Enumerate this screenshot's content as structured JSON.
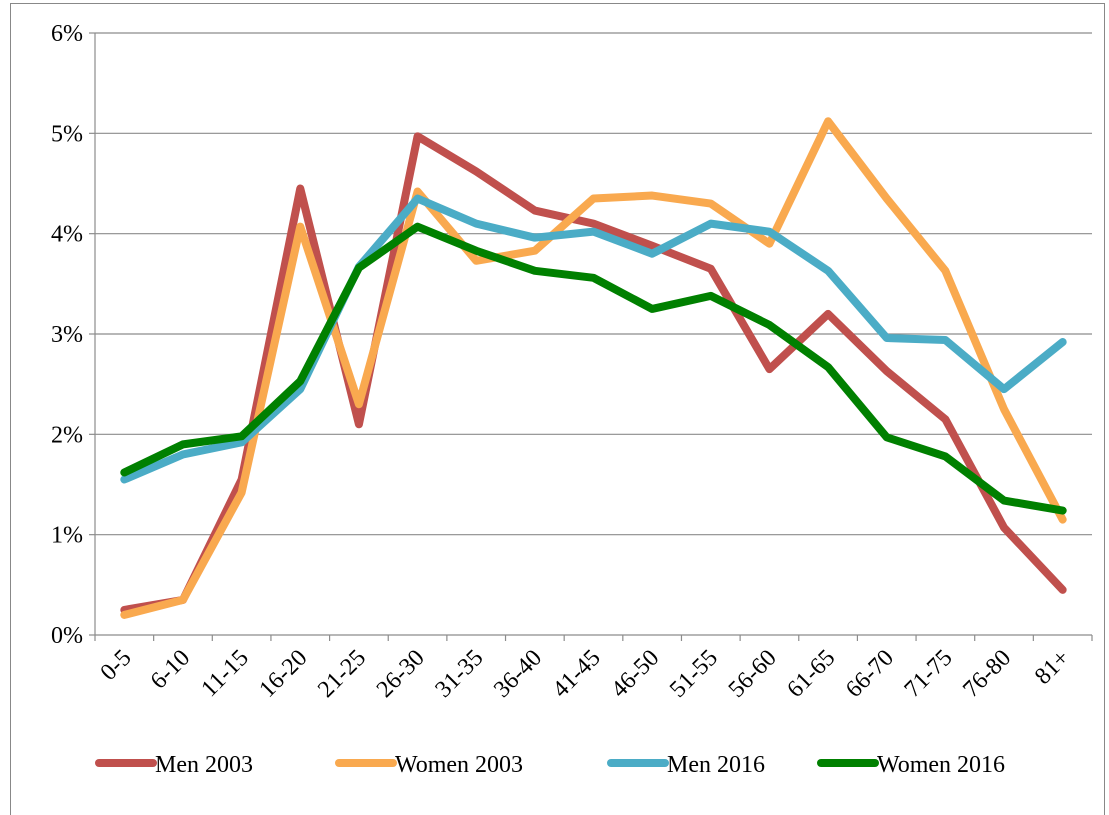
{
  "chart_data": {
    "type": "line",
    "categories": [
      "0-5",
      "6-10",
      "11-15",
      "16-20",
      "21-25",
      "26-30",
      "31-35",
      "36-40",
      "41-45",
      "46-50",
      "51-55",
      "56-60",
      "61-65",
      "66-70",
      "71-75",
      "76-80",
      "81+"
    ],
    "series": [
      {
        "name": "Men 2003",
        "color": "#c0504d",
        "values": [
          0.25,
          0.35,
          1.55,
          4.45,
          2.1,
          4.97,
          4.62,
          4.23,
          4.1,
          3.88,
          3.65,
          2.65,
          3.2,
          2.63,
          2.15,
          1.07,
          0.45
        ]
      },
      {
        "name": "Women 2003",
        "color": "#f9a94f",
        "values": [
          0.2,
          0.35,
          1.42,
          4.07,
          2.3,
          4.42,
          3.73,
          3.83,
          4.35,
          4.38,
          4.3,
          3.9,
          5.12,
          4.35,
          3.63,
          2.25,
          1.15
        ]
      },
      {
        "name": "Men 2016",
        "color": "#4bacc6",
        "values": [
          1.55,
          1.8,
          1.92,
          2.45,
          3.67,
          4.35,
          4.1,
          3.96,
          4.02,
          3.8,
          4.1,
          4.02,
          3.63,
          2.96,
          2.94,
          2.45,
          2.92
        ]
      },
      {
        "name": "Women 2016",
        "color": "#008000",
        "values": [
          1.62,
          1.9,
          1.98,
          2.53,
          3.66,
          4.07,
          3.83,
          3.63,
          3.56,
          3.25,
          3.38,
          3.09,
          2.67,
          1.97,
          1.78,
          1.34,
          1.24
        ]
      }
    ],
    "ylim": [
      0,
      6
    ],
    "yticks": [
      {
        "value": 0,
        "label": "0%"
      },
      {
        "value": 1,
        "label": "1%"
      },
      {
        "value": 2,
        "label": "2%"
      },
      {
        "value": 3,
        "label": "3%"
      },
      {
        "value": 4,
        "label": "4%"
      },
      {
        "value": 5,
        "label": "5%"
      },
      {
        "value": 6,
        "label": "6%"
      }
    ],
    "grid": true,
    "legend": "bottom"
  }
}
